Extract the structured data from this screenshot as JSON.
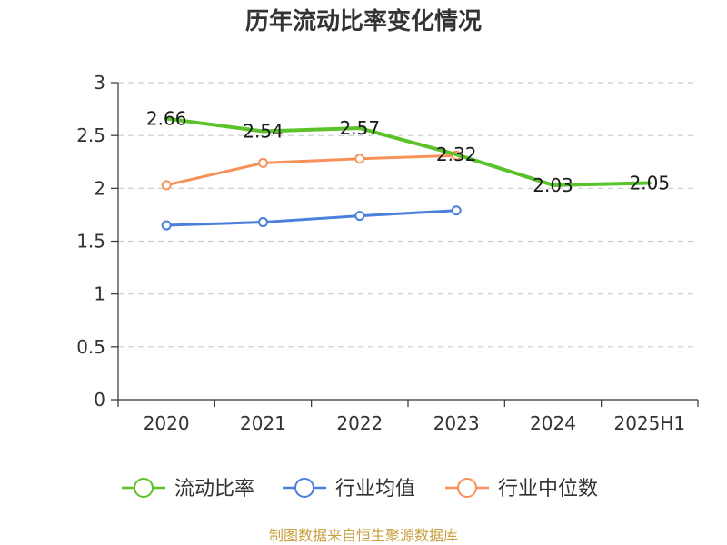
{
  "chart_data": {
    "type": "line",
    "title": "历年流动比率变化情况",
    "categories": [
      "2020",
      "2021",
      "2022",
      "2023",
      "2024",
      "2025H1"
    ],
    "ylim": [
      0,
      3
    ],
    "yticks": [
      "0",
      "0.5",
      "1",
      "1.5",
      "2",
      "2.5",
      "3"
    ],
    "grid": true,
    "legend_position": "bottom",
    "series": [
      {
        "name": "流动比率",
        "color": "#5cc22a",
        "values": [
          2.66,
          2.54,
          2.57,
          2.32,
          2.03,
          2.05
        ],
        "labels": [
          "2.66",
          "2.54",
          "2.57",
          "2.32",
          "2.03",
          "2.05"
        ],
        "show_labels": true
      },
      {
        "name": "行业均值",
        "color": "#4a7fdc",
        "values": [
          1.65,
          1.68,
          1.74,
          1.79,
          null,
          null
        ],
        "show_labels": false
      },
      {
        "name": "行业中位数",
        "color": "#f7915a",
        "values": [
          2.03,
          2.24,
          2.28,
          2.31,
          null,
          null
        ],
        "show_labels": false
      }
    ]
  },
  "source": "制图数据来自恒生聚源数据库"
}
